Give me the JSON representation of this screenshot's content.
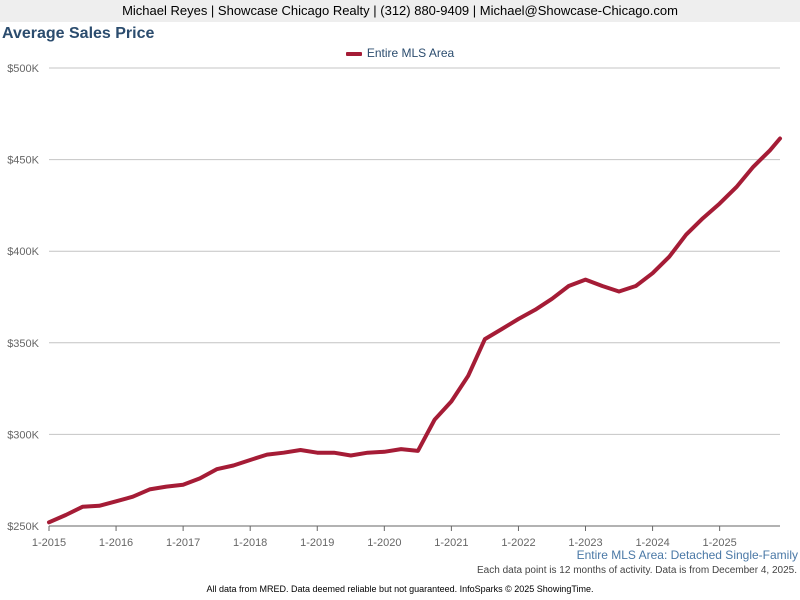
{
  "header": {
    "contact_line": "Michael Reyes | Showcase Chicago Realty | (312) 880-9409 | Michael@Showcase-Chicago.com"
  },
  "chart_data": {
    "type": "line",
    "title": "Average Sales Price",
    "xlabel": "",
    "ylabel": "",
    "ylim": [
      250000,
      500000
    ],
    "y_ticks": [
      250000,
      300000,
      350000,
      400000,
      450000,
      500000
    ],
    "y_tick_labels": [
      "$250K",
      "$300K",
      "$350K",
      "$400K",
      "$450K",
      "$500K"
    ],
    "x_ticks": [
      2015,
      2016,
      2017,
      2018,
      2019,
      2020,
      2021,
      2022,
      2023,
      2024,
      2025
    ],
    "x_tick_labels": [
      "1-2015",
      "1-2016",
      "1-2017",
      "1-2018",
      "1-2019",
      "1-2020",
      "1-2021",
      "1-2022",
      "1-2023",
      "1-2024",
      "1-2025"
    ],
    "xlim": [
      2015,
      2025.9
    ],
    "legend_position": "top-center",
    "grid": true,
    "series": [
      {
        "name": "Entire MLS Area",
        "color": "#a51c36",
        "x": [
          2015.0,
          2015.25,
          2015.5,
          2015.75,
          2016.0,
          2016.25,
          2016.5,
          2016.75,
          2017.0,
          2017.25,
          2017.5,
          2017.75,
          2018.0,
          2018.25,
          2018.5,
          2018.75,
          2019.0,
          2019.25,
          2019.5,
          2019.75,
          2020.0,
          2020.25,
          2020.5,
          2020.75,
          2021.0,
          2021.25,
          2021.5,
          2021.75,
          2022.0,
          2022.25,
          2022.5,
          2022.75,
          2023.0,
          2023.25,
          2023.5,
          2023.75,
          2024.0,
          2024.25,
          2024.5,
          2024.75,
          2025.0,
          2025.25,
          2025.5,
          2025.75,
          2025.9
        ],
        "values": [
          252000,
          256000,
          260500,
          261000,
          263500,
          266000,
          270000,
          271500,
          272500,
          276000,
          281000,
          283000,
          286000,
          289000,
          290000,
          291500,
          290000,
          290000,
          288500,
          290000,
          290500,
          292000,
          291000,
          308000,
          318000,
          332000,
          352000,
          357500,
          363000,
          368000,
          374000,
          381000,
          384500,
          381000,
          378000,
          381000,
          388000,
          397000,
          409000,
          418000,
          426000,
          435000,
          446000,
          455000,
          461500
        ]
      }
    ]
  },
  "footnotes": {
    "area_label": "Entire MLS Area: Detached Single-Family",
    "data_note": "Each data point is 12 months of activity. Data is from December 4, 2025.",
    "disclaimer": "All data from MRED. Data deemed reliable but not guaranteed. InfoSparks © 2025 ShowingTime."
  }
}
